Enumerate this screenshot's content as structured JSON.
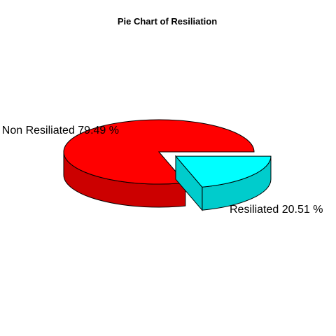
{
  "chart_data": {
    "type": "pie",
    "style": "3d-exploded",
    "title": "Pie Chart of Resiliation",
    "slices": [
      {
        "label": "Non Resiliated",
        "value": 79.49,
        "label_text": "Non Resiliated   79.49 %",
        "color": "#ff0000",
        "side_color": "#cc0000",
        "exploded": false
      },
      {
        "label": "Resiliated",
        "value": 20.51,
        "label_text": "Resiliated   20.51 %",
        "color": "#00ffff",
        "side_color": "#00cccc",
        "exploded": true
      }
    ]
  }
}
